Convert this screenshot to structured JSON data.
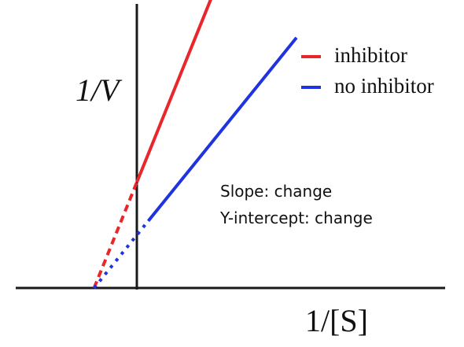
{
  "chart_data": {
    "type": "line",
    "title": "",
    "xlabel": "1/[S]",
    "ylabel": "1/V",
    "series": [
      {
        "name": "inhibitor",
        "color": "#e8262b",
        "y_intercept": 1.2,
        "slope": 0.32,
        "x_intercept": -3.75,
        "solid_x_range": [
          0,
          10
        ],
        "dashed_x_range": [
          -3.75,
          0
        ]
      },
      {
        "name": "no inhibitor",
        "color": "#1f34e0",
        "y_intercept": 0.6,
        "slope": 0.16,
        "x_intercept": -3.75,
        "solid_x_range": [
          1,
          14
        ],
        "dotted_x_range": [
          -3.75,
          1
        ]
      }
    ],
    "notes": [
      "Slope: change",
      "Y-intercept: change"
    ],
    "grid": false,
    "legend_position": "top-right"
  },
  "labels": {
    "y_axis_label": "1/V",
    "x_axis_label": "1/[S]",
    "note_slope": "Slope: change",
    "note_intercept": "Y-intercept: change",
    "legend_inhibitor": "inhibitor",
    "legend_no_inhibitor": "no inhibitor"
  },
  "colors": {
    "inhibitor": "#e8262b",
    "no_inhibitor": "#1f34e0",
    "axis": "#1a1a1a"
  }
}
